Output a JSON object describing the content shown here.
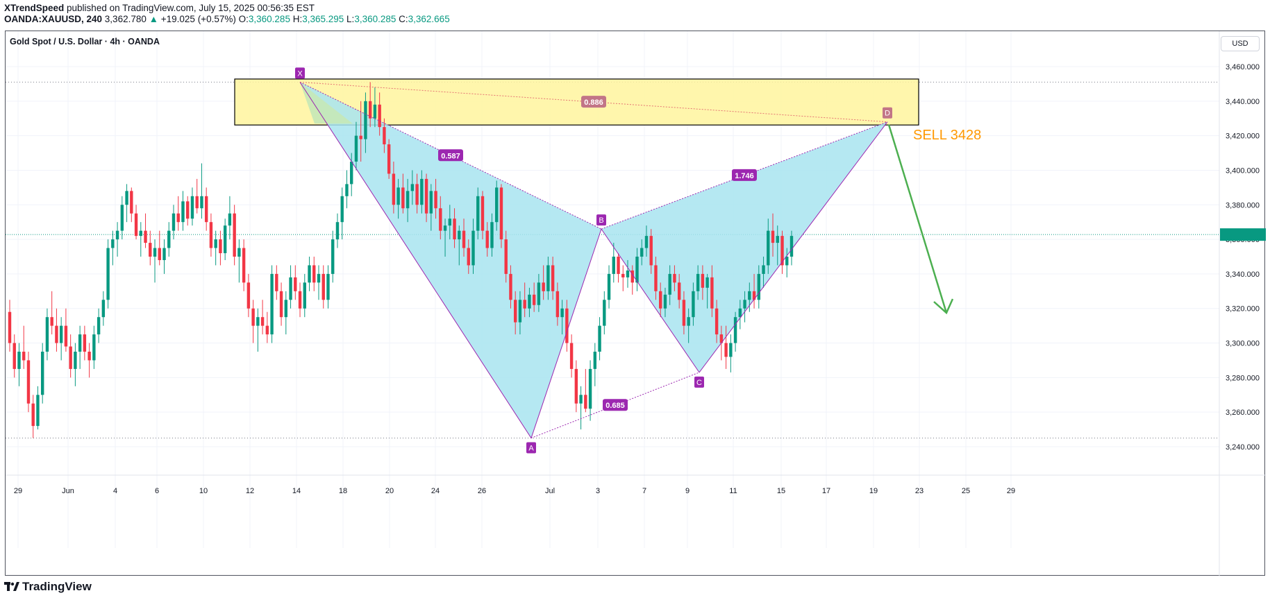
{
  "header": {
    "author": "XTrendSpeed",
    "published": " published on TradingView.com, July 15, 2025 00:56:35 EST",
    "symbol": "OANDA:XAUUSD, 240",
    "last": "3,362.780",
    "change_arrow": "▲",
    "change": "+19.025 (+0.57%)",
    "o_label": "O:",
    "o": "3,360.285",
    "h_label": "H:",
    "h": "3,365.295",
    "l_label": "L:",
    "l": "3,360.285",
    "c_label": "C:",
    "c": "3,362.665"
  },
  "legend_title": "Gold Spot / U.S. Dollar · 4h · OANDA",
  "currency": "USD",
  "footer": {
    "brand": "TradingView"
  },
  "colors": {
    "up": "#089981",
    "down": "#f23645",
    "pattern_fill": "#a8e4f0",
    "pattern_line": "#9c27b0",
    "zone_fill": "#fff59d",
    "zone_border": "#000000",
    "arrow": "#4caf50",
    "sell_text": "#ff9800"
  },
  "chart_data": {
    "type": "candlestick",
    "y_range": [
      3230,
      3470
    ],
    "y_ticks": [
      "3,460.000",
      "3,440.000",
      "3,420.000",
      "3,400.000",
      "3,380.000",
      "3,360.000",
      "3,340.000",
      "3,320.000",
      "3,300.000",
      "3,280.000",
      "3,260.000",
      "3,240.000"
    ],
    "y_tick_values": [
      3460,
      3440,
      3420,
      3400,
      3380,
      3360,
      3340,
      3320,
      3300,
      3280,
      3260,
      3240
    ],
    "x_ticks": [
      "29",
      "Jun",
      "4",
      "6",
      "10",
      "12",
      "14",
      "18",
      "20",
      "24",
      "26",
      "Jul",
      "3",
      "7",
      "9",
      "11",
      "15",
      "17",
      "19",
      "23",
      "25",
      "29"
    ],
    "current_price": 3362.78,
    "high_line": 3451,
    "low_line": 3245,
    "pattern": {
      "points": [
        {
          "label": "X",
          "date": "Jun 14",
          "price": 3451
        },
        {
          "label": "A",
          "date": "Jun 30",
          "price": 3245
        },
        {
          "label": "B",
          "date": "Jul 3",
          "price": 3366
        },
        {
          "label": "C",
          "date": "Jul 9",
          "price": 3283
        },
        {
          "label": "D",
          "date": "Jul 20",
          "price": 3428
        }
      ],
      "ratios": [
        {
          "label": "0.587",
          "between": "X-B"
        },
        {
          "label": "0.685",
          "between": "A-C"
        },
        {
          "label": "1.746",
          "between": "B-D"
        },
        {
          "label": "0.886",
          "between": "X-D"
        }
      ]
    },
    "zone": {
      "top": 3452,
      "bottom": 3427
    },
    "annotation": {
      "text": "SELL 3428"
    },
    "candles": [
      [
        3318,
        3325,
        3295,
        3300
      ],
      [
        3300,
        3305,
        3280,
        3285
      ],
      [
        3285,
        3300,
        3275,
        3295
      ],
      [
        3295,
        3310,
        3285,
        3290
      ],
      [
        3290,
        3295,
        3260,
        3265
      ],
      [
        3265,
        3270,
        3245,
        3252
      ],
      [
        3252,
        3275,
        3250,
        3270
      ],
      [
        3270,
        3300,
        3265,
        3295
      ],
      [
        3295,
        3320,
        3290,
        3315
      ],
      [
        3315,
        3330,
        3305,
        3310
      ],
      [
        3310,
        3320,
        3295,
        3300
      ],
      [
        3300,
        3315,
        3290,
        3310
      ],
      [
        3310,
        3320,
        3295,
        3298
      ],
      [
        3298,
        3305,
        3280,
        3285
      ],
      [
        3285,
        3300,
        3275,
        3295
      ],
      [
        3295,
        3310,
        3285,
        3305
      ],
      [
        3305,
        3310,
        3290,
        3295
      ],
      [
        3295,
        3300,
        3280,
        3290
      ],
      [
        3290,
        3310,
        3285,
        3305
      ],
      [
        3305,
        3320,
        3300,
        3315
      ],
      [
        3315,
        3330,
        3310,
        3325
      ],
      [
        3325,
        3360,
        3320,
        3355
      ],
      [
        3355,
        3365,
        3345,
        3360
      ],
      [
        3360,
        3370,
        3350,
        3365
      ],
      [
        3365,
        3385,
        3360,
        3380
      ],
      [
        3380,
        3392,
        3370,
        3388
      ],
      [
        3388,
        3390,
        3370,
        3375
      ],
      [
        3375,
        3380,
        3360,
        3362
      ],
      [
        3362,
        3370,
        3350,
        3365
      ],
      [
        3365,
        3375,
        3355,
        3358
      ],
      [
        3358,
        3365,
        3345,
        3350
      ],
      [
        3350,
        3360,
        3335,
        3355
      ],
      [
        3355,
        3365,
        3345,
        3348
      ],
      [
        3348,
        3360,
        3340,
        3355
      ],
      [
        3355,
        3370,
        3350,
        3365
      ],
      [
        3365,
        3380,
        3360,
        3375
      ],
      [
        3375,
        3385,
        3365,
        3370
      ],
      [
        3370,
        3388,
        3365,
        3382
      ],
      [
        3382,
        3385,
        3368,
        3372
      ],
      [
        3372,
        3390,
        3368,
        3385
      ],
      [
        3385,
        3395,
        3375,
        3378
      ],
      [
        3378,
        3404,
        3372,
        3385
      ],
      [
        3385,
        3390,
        3365,
        3370
      ],
      [
        3370,
        3375,
        3350,
        3355
      ],
      [
        3355,
        3365,
        3345,
        3360
      ],
      [
        3360,
        3365,
        3345,
        3352
      ],
      [
        3352,
        3372,
        3348,
        3368
      ],
      [
        3368,
        3385,
        3360,
        3375
      ],
      [
        3375,
        3380,
        3345,
        3350
      ],
      [
        3350,
        3360,
        3335,
        3355
      ],
      [
        3355,
        3360,
        3330,
        3335
      ],
      [
        3335,
        3340,
        3315,
        3320
      ],
      [
        3320,
        3325,
        3300,
        3310
      ],
      [
        3310,
        3320,
        3295,
        3315
      ],
      [
        3315,
        3325,
        3305,
        3310
      ],
      [
        3310,
        3318,
        3300,
        3305
      ],
      [
        3305,
        3345,
        3300,
        3340
      ],
      [
        3340,
        3345,
        3325,
        3330
      ],
      [
        3330,
        3335,
        3310,
        3315
      ],
      [
        3315,
        3330,
        3305,
        3325
      ],
      [
        3325,
        3345,
        3320,
        3338
      ],
      [
        3338,
        3345,
        3325,
        3330
      ],
      [
        3330,
        3335,
        3315,
        3320
      ],
      [
        3320,
        3340,
        3315,
        3335
      ],
      [
        3335,
        3350,
        3330,
        3345
      ],
      [
        3345,
        3350,
        3330,
        3335
      ],
      [
        3335,
        3345,
        3325,
        3340
      ],
      [
        3340,
        3345,
        3320,
        3325
      ],
      [
        3325,
        3345,
        3320,
        3340
      ],
      [
        3340,
        3365,
        3335,
        3360
      ],
      [
        3360,
        3375,
        3355,
        3370
      ],
      [
        3370,
        3390,
        3360,
        3385
      ],
      [
        3385,
        3400,
        3378,
        3392
      ],
      [
        3392,
        3410,
        3385,
        3405
      ],
      [
        3405,
        3428,
        3400,
        3420
      ],
      [
        3420,
        3440,
        3405,
        3418
      ],
      [
        3418,
        3445,
        3410,
        3440
      ],
      [
        3440,
        3451,
        3425,
        3430
      ],
      [
        3430,
        3448,
        3425,
        3438
      ],
      [
        3438,
        3445,
        3420,
        3425
      ],
      [
        3425,
        3430,
        3410,
        3415
      ],
      [
        3415,
        3418,
        3395,
        3398
      ],
      [
        3398,
        3405,
        3375,
        3380
      ],
      [
        3380,
        3395,
        3372,
        3390
      ],
      [
        3390,
        3398,
        3375,
        3378
      ],
      [
        3378,
        3395,
        3370,
        3388
      ],
      [
        3388,
        3400,
        3380,
        3392
      ],
      [
        3392,
        3398,
        3375,
        3380
      ],
      [
        3380,
        3400,
        3375,
        3395
      ],
      [
        3395,
        3398,
        3370,
        3375
      ],
      [
        3375,
        3392,
        3365,
        3388
      ],
      [
        3388,
        3395,
        3372,
        3378
      ],
      [
        3378,
        3385,
        3360,
        3365
      ],
      [
        3365,
        3372,
        3350,
        3368
      ],
      [
        3368,
        3380,
        3360,
        3372
      ],
      [
        3372,
        3378,
        3355,
        3360
      ],
      [
        3360,
        3368,
        3345,
        3365
      ],
      [
        3365,
        3372,
        3350,
        3355
      ],
      [
        3355,
        3360,
        3340,
        3345
      ],
      [
        3345,
        3372,
        3340,
        3365
      ],
      [
        3365,
        3390,
        3360,
        3385
      ],
      [
        3385,
        3388,
        3360,
        3365
      ],
      [
        3365,
        3370,
        3350,
        3355
      ],
      [
        3355,
        3375,
        3350,
        3370
      ],
      [
        3370,
        3394,
        3365,
        3390
      ],
      [
        3390,
        3392,
        3355,
        3360
      ],
      [
        3360,
        3365,
        3335,
        3340
      ],
      [
        3340,
        3345,
        3320,
        3325
      ],
      [
        3325,
        3330,
        3305,
        3312
      ],
      [
        3312,
        3330,
        3305,
        3325
      ],
      [
        3325,
        3335,
        3315,
        3320
      ],
      [
        3320,
        3332,
        3315,
        3328
      ],
      [
        3328,
        3335,
        3318,
        3322
      ],
      [
        3322,
        3340,
        3318,
        3335
      ],
      [
        3335,
        3345,
        3325,
        3330
      ],
      [
        3330,
        3350,
        3325,
        3345
      ],
      [
        3345,
        3350,
        3325,
        3330
      ],
      [
        3330,
        3335,
        3310,
        3315
      ],
      [
        3315,
        3325,
        3305,
        3320
      ],
      [
        3320,
        3325,
        3295,
        3300
      ],
      [
        3300,
        3305,
        3280,
        3285
      ],
      [
        3285,
        3290,
        3260,
        3265
      ],
      [
        3265,
        3275,
        3250,
        3270
      ],
      [
        3270,
        3285,
        3260,
        3262
      ],
      [
        3262,
        3290,
        3255,
        3285
      ],
      [
        3285,
        3300,
        3275,
        3295
      ],
      [
        3295,
        3315,
        3290,
        3310
      ],
      [
        3310,
        3330,
        3305,
        3325
      ],
      [
        3325,
        3345,
        3320,
        3340
      ],
      [
        3340,
        3358,
        3335,
        3350
      ],
      [
        3350,
        3352,
        3335,
        3340
      ],
      [
        3340,
        3345,
        3330,
        3338
      ],
      [
        3338,
        3348,
        3332,
        3342
      ],
      [
        3342,
        3345,
        3328,
        3335
      ],
      [
        3335,
        3355,
        3330,
        3350
      ],
      [
        3350,
        3360,
        3345,
        3355
      ],
      [
        3355,
        3368,
        3350,
        3362
      ],
      [
        3362,
        3366,
        3340,
        3345
      ],
      [
        3345,
        3350,
        3325,
        3330
      ],
      [
        3330,
        3335,
        3315,
        3320
      ],
      [
        3320,
        3332,
        3315,
        3328
      ],
      [
        3328,
        3345,
        3322,
        3340
      ],
      [
        3340,
        3345,
        3330,
        3335
      ],
      [
        3335,
        3340,
        3320,
        3325
      ],
      [
        3325,
        3330,
        3305,
        3310
      ],
      [
        3310,
        3320,
        3300,
        3315
      ],
      [
        3315,
        3335,
        3310,
        3330
      ],
      [
        3330,
        3345,
        3325,
        3340
      ],
      [
        3340,
        3345,
        3325,
        3332
      ],
      [
        3332,
        3340,
        3320,
        3338
      ],
      [
        3338,
        3345,
        3315,
        3320
      ],
      [
        3320,
        3325,
        3300,
        3305
      ],
      [
        3305,
        3310,
        3290,
        3300
      ],
      [
        3300,
        3310,
        3285,
        3292
      ],
      [
        3292,
        3305,
        3283,
        3300
      ],
      [
        3300,
        3318,
        3295,
        3315
      ],
      [
        3315,
        3325,
        3308,
        3320
      ],
      [
        3320,
        3330,
        3312,
        3325
      ],
      [
        3325,
        3335,
        3318,
        3330
      ],
      [
        3330,
        3340,
        3320,
        3325
      ],
      [
        3325,
        3345,
        3320,
        3340
      ],
      [
        3340,
        3350,
        3332,
        3345
      ],
      [
        3345,
        3372,
        3340,
        3365
      ],
      [
        3365,
        3375,
        3350,
        3358
      ],
      [
        3358,
        3368,
        3345,
        3362
      ],
      [
        3362,
        3365,
        3340,
        3345
      ],
      [
        3345,
        3355,
        3338,
        3350
      ],
      [
        3350,
        3365,
        3345,
        3362
      ]
    ]
  }
}
